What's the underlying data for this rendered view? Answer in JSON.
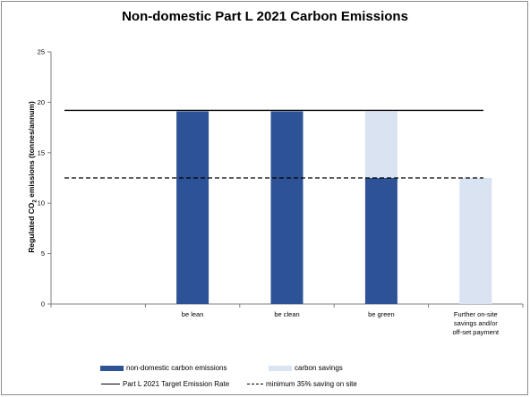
{
  "chart_data": {
    "type": "bar",
    "title": "Non-domestic Part L 2021 Carbon Emissions",
    "ylabel_parts": [
      "Regulated CO",
      "2",
      " emissions (tonnes/annum)"
    ],
    "ylim": [
      0,
      25
    ],
    "yticks": [
      "0",
      "5",
      "10",
      "15",
      "20",
      "25"
    ],
    "categories": [
      [
        "be lean"
      ],
      [
        "be clean"
      ],
      [
        "be green"
      ],
      [
        "Further on-site",
        "savings and/or",
        "off-set payment"
      ]
    ],
    "slots": 5,
    "series": [
      {
        "name": "non-domestic carbon emissions",
        "color": "#2e5296",
        "values": [
          19.1,
          19.1,
          12.5,
          0
        ]
      },
      {
        "name": "carbon savings",
        "color": "#dae3f2",
        "values": [
          0,
          0,
          6.6,
          12.5
        ]
      }
    ],
    "reference_lines": [
      {
        "name": "Part L 2021 Target Emission Rate",
        "value": 19.2,
        "style": "solid"
      },
      {
        "name": "minimum 35% saving on site",
        "value": 12.5,
        "style": "dashed"
      }
    ],
    "grid": false,
    "legend_position": "bottom"
  }
}
